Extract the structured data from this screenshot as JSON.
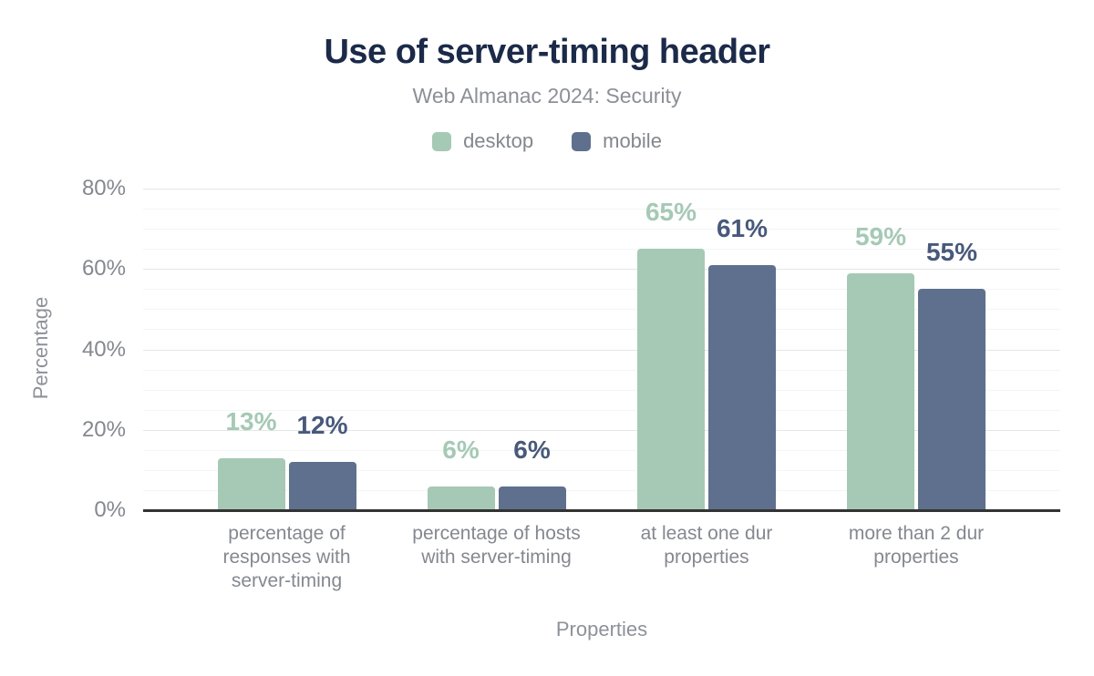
{
  "header": {
    "title": "Use of server-timing header",
    "subtitle": "Web Almanac 2024: Security"
  },
  "chart_data": {
    "type": "bar",
    "title": "Use of server-timing header",
    "subtitle": "Web Almanac 2024: Security",
    "xlabel": "Properties",
    "ylabel": "Percentage",
    "ylim": [
      0,
      80
    ],
    "ytick_labels": [
      "0%",
      "20%",
      "40%",
      "60%",
      "80%"
    ],
    "yticks": [
      0,
      20,
      40,
      60,
      80
    ],
    "grid": "horizontal minor lines every 5%, major every 20%",
    "legend_position": "top-center",
    "categories": [
      "percentage of responses with server-timing",
      "percentage of hosts with server-timing",
      "at least one dur properties",
      "more than 2 dur properties"
    ],
    "category_lines": [
      [
        "percentage of",
        "responses with",
        "server-timing"
      ],
      [
        "percentage of hosts",
        "with server-timing"
      ],
      [
        "at least one dur",
        "properties"
      ],
      [
        "more than 2 dur",
        "properties"
      ]
    ],
    "series": [
      {
        "name": "desktop",
        "color": "#a5c9b5",
        "label_color": "#a5c9b5",
        "values": [
          13,
          6,
          65,
          59
        ],
        "labels": [
          "13%",
          "6%",
          "65%",
          "59%"
        ]
      },
      {
        "name": "mobile",
        "color": "#5e708d",
        "label_color": "#48597b",
        "values": [
          12,
          6,
          61,
          55
        ],
        "labels": [
          "12%",
          "6%",
          "61%",
          "55%"
        ]
      }
    ]
  },
  "colors": {
    "title": "#1b2a49",
    "subtitle": "#8c8f96",
    "axis_text": "#84888f",
    "baseline": "#333333",
    "gridline_major": "#e4e6e8",
    "gridline_minor": "#f4f5f6",
    "background": "#ffffff"
  }
}
